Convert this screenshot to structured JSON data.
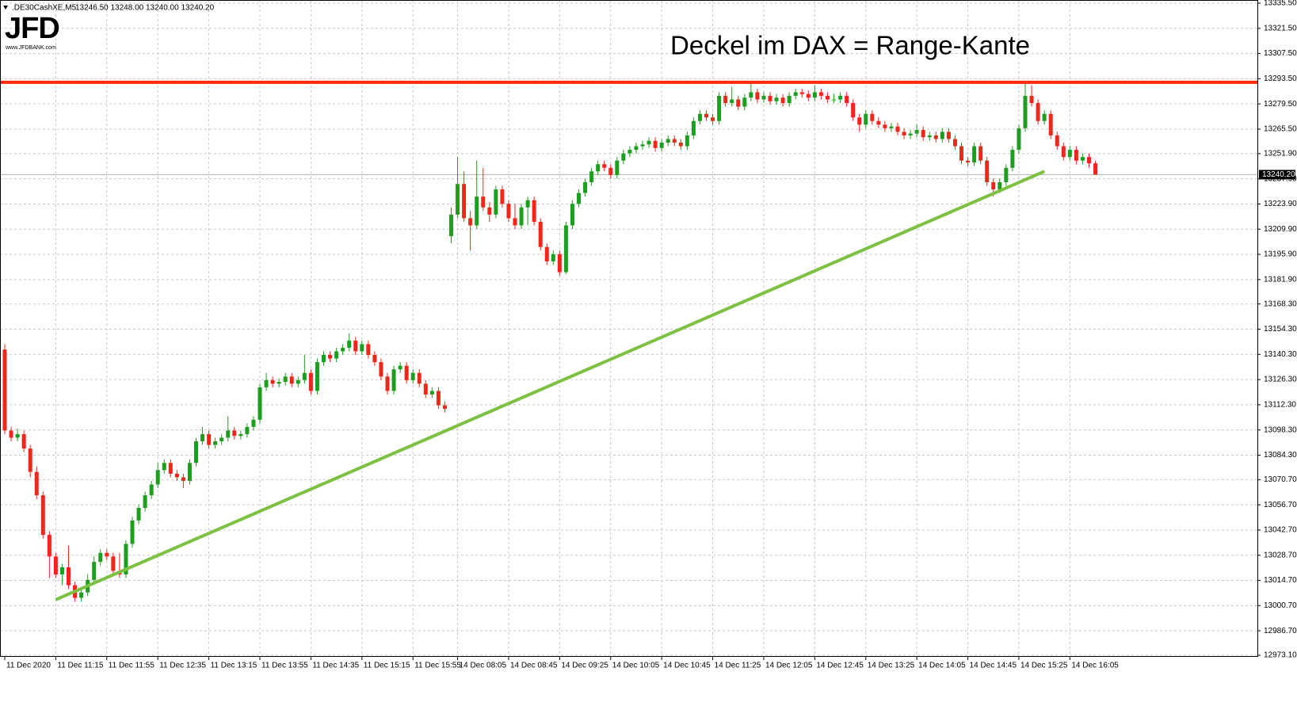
{
  "header": {
    "symbol": ".DE30CashXE,M5",
    "ohlc_text": "13246.50 13248.00 13240.00 13240.20"
  },
  "logo": {
    "brand": "JFD",
    "url": "www.JFDBANK.com"
  },
  "chart_data": {
    "type": "candlestick",
    "title": "Deckel im DAX = Range-Kante",
    "up_color": "#1e9e1e",
    "down_color": "#f0261b",
    "grid": true,
    "ylim": [
      12973.1,
      13335.5
    ],
    "yticks": [
      {
        "value": 13335.5,
        "label": "13335.50"
      },
      {
        "value": 13321.5,
        "label": "13321.50"
      },
      {
        "value": 13307.5,
        "label": "13307.50"
      },
      {
        "value": 13293.5,
        "label": "13293.50"
      },
      {
        "value": 13279.5,
        "label": "13279.50"
      },
      {
        "value": 13265.5,
        "label": "13265.50"
      },
      {
        "value": 13251.9,
        "label": "13251.90"
      },
      {
        "value": 13237.9,
        "label": "13237.90"
      },
      {
        "value": 13223.9,
        "label": "13223.90"
      },
      {
        "value": 13209.9,
        "label": "13209.90"
      },
      {
        "value": 13195.9,
        "label": "13195.90"
      },
      {
        "value": 13181.9,
        "label": "13181.90"
      },
      {
        "value": 13168.3,
        "label": "13168.30"
      },
      {
        "value": 13154.3,
        "label": "13154.30"
      },
      {
        "value": 13140.3,
        "label": "13140.30"
      },
      {
        "value": 13126.3,
        "label": "13126.30"
      },
      {
        "value": 13112.3,
        "label": "13112.30"
      },
      {
        "value": 13098.3,
        "label": "13098.30"
      },
      {
        "value": 13084.3,
        "label": "13084.30"
      },
      {
        "value": 13070.7,
        "label": "13070.70"
      },
      {
        "value": 13056.7,
        "label": "13056.70"
      },
      {
        "value": 13042.7,
        "label": "13042.70"
      },
      {
        "value": 13028.7,
        "label": "13028.70"
      },
      {
        "value": 13014.7,
        "label": "13014.70"
      },
      {
        "value": 13000.7,
        "label": "13000.70"
      },
      {
        "value": 12986.7,
        "label": "12986.70"
      },
      {
        "value": 12973.1,
        "label": "12973.10"
      }
    ],
    "last_price": {
      "value": 13240.2,
      "label": "13240.20"
    },
    "hlines": [
      {
        "value": 13291.5,
        "color": "#ff2a0a"
      }
    ],
    "trendlines": [
      {
        "x": [
          8,
          163
        ],
        "values": [
          13004,
          13242
        ],
        "color": "#7cc142"
      }
    ],
    "categories": [
      "11 Dec 2020",
      null,
      null,
      null,
      null,
      null,
      null,
      null,
      "11 Dec 11:15",
      null,
      null,
      null,
      null,
      null,
      null,
      null,
      "11 Dec 11:55",
      null,
      null,
      null,
      null,
      null,
      null,
      null,
      "11 Dec 12:35",
      null,
      null,
      null,
      null,
      null,
      null,
      null,
      "11 Dec 13:15",
      null,
      null,
      null,
      null,
      null,
      null,
      null,
      "11 Dec 13:55",
      null,
      null,
      null,
      null,
      null,
      null,
      null,
      "11 Dec 14:35",
      null,
      null,
      null,
      null,
      null,
      null,
      null,
      "11 Dec 15:15",
      null,
      null,
      null,
      null,
      null,
      null,
      null,
      "11 Dec 15:55",
      null,
      null,
      null,
      null,
      null,
      null,
      "14 Dec 08:05",
      null,
      null,
      null,
      null,
      null,
      null,
      null,
      "14 Dec 08:45",
      null,
      null,
      null,
      null,
      null,
      null,
      null,
      "14 Dec 09:25",
      null,
      null,
      null,
      null,
      null,
      null,
      null,
      "14 Dec 10:05",
      null,
      null,
      null,
      null,
      null,
      null,
      null,
      "14 Dec 10:45",
      null,
      null,
      null,
      null,
      null,
      null,
      null,
      "14 Dec 11:25",
      null,
      null,
      null,
      null,
      null,
      null,
      null,
      "14 Dec 12:05",
      null,
      null,
      null,
      null,
      null,
      null,
      null,
      "14 Dec 12:45",
      null,
      null,
      null,
      null,
      null,
      null,
      null,
      "14 Dec 13:25",
      null,
      null,
      null,
      null,
      null,
      null,
      null,
      "14 Dec 14:05",
      null,
      null,
      null,
      null,
      null,
      null,
      null,
      "14 Dec 14:45",
      null,
      null,
      null,
      null,
      null,
      null,
      null,
      "14 Dec 15:25",
      null,
      null,
      null,
      null,
      null,
      null,
      null,
      "14 Dec 16:05",
      null,
      null,
      null,
      null
    ],
    "ohlc": [
      [
        13143,
        13146,
        13096,
        13098
      ],
      [
        13098,
        13100,
        13092,
        13094
      ],
      [
        13094,
        13099,
        13092,
        13096
      ],
      [
        13096,
        13098,
        13086,
        13088
      ],
      [
        13088,
        13090,
        13072,
        13075
      ],
      [
        13075,
        13078,
        13060,
        13062
      ],
      [
        13062,
        13064,
        13038,
        13040
      ],
      [
        13040,
        13042,
        13016,
        13028
      ],
      [
        13028,
        13030,
        13016,
        13018
      ],
      [
        13018,
        13024,
        13012,
        13022
      ],
      [
        13022,
        13034,
        13010,
        13012
      ],
      [
        13012,
        13014,
        13003,
        13005
      ],
      [
        13005,
        13010,
        13003,
        13008
      ],
      [
        13008,
        13018,
        13006,
        13015
      ],
      [
        13015,
        13028,
        13013,
        13025
      ],
      [
        13025,
        13032,
        13023,
        13030
      ],
      [
        13030,
        13032,
        13026,
        13028
      ],
      [
        13028,
        13030,
        13018,
        13020
      ],
      [
        13020,
        13030,
        13016,
        13018
      ],
      [
        13018,
        13037,
        13016,
        13035
      ],
      [
        13035,
        13050,
        13033,
        13048
      ],
      [
        13048,
        13057,
        13046,
        13055
      ],
      [
        13055,
        13064,
        13053,
        13062
      ],
      [
        13062,
        13070,
        13060,
        13068
      ],
      [
        13068,
        13080,
        13066,
        13076
      ],
      [
        13076,
        13082,
        13074,
        13080
      ],
      [
        13080,
        13082,
        13072,
        13074
      ],
      [
        13074,
        13076,
        13070,
        13072
      ],
      [
        13072,
        13074,
        13066,
        13070
      ],
      [
        13070,
        13082,
        13068,
        13080
      ],
      [
        13080,
        13094,
        13078,
        13092
      ],
      [
        13092,
        13100,
        13090,
        13096
      ],
      [
        13096,
        13098,
        13088,
        13090
      ],
      [
        13090,
        13094,
        13088,
        13092
      ],
      [
        13092,
        13096,
        13090,
        13094
      ],
      [
        13094,
        13106,
        13092,
        13098
      ],
      [
        13098,
        13100,
        13093,
        13095
      ],
      [
        13095,
        13098,
        13093,
        13096
      ],
      [
        13096,
        13102,
        13094,
        13100
      ],
      [
        13100,
        13106,
        13098,
        13104
      ],
      [
        13104,
        13124,
        13102,
        13122
      ],
      [
        13122,
        13130,
        13120,
        13126
      ],
      [
        13126,
        13128,
        13122,
        13124
      ],
      [
        13124,
        13127,
        13122,
        13125
      ],
      [
        13125,
        13130,
        13123,
        13128
      ],
      [
        13128,
        13130,
        13122,
        13124
      ],
      [
        13124,
        13128,
        13122,
        13126
      ],
      [
        13126,
        13140,
        13124,
        13130
      ],
      [
        13130,
        13132,
        13118,
        13120
      ],
      [
        13120,
        13138,
        13118,
        13136
      ],
      [
        13136,
        13142,
        13134,
        13140
      ],
      [
        13140,
        13142,
        13136,
        13138
      ],
      [
        13138,
        13144,
        13136,
        13142
      ],
      [
        13142,
        13146,
        13140,
        13144
      ],
      [
        13144,
        13152,
        13142,
        13148
      ],
      [
        13148,
        13150,
        13140,
        13142
      ],
      [
        13142,
        13148,
        13140,
        13146
      ],
      [
        13146,
        13148,
        13138,
        13140
      ],
      [
        13140,
        13142,
        13134,
        13136
      ],
      [
        13136,
        13138,
        13126,
        13128
      ],
      [
        13128,
        13130,
        13118,
        13120
      ],
      [
        13120,
        13134,
        13118,
        13132
      ],
      [
        13132,
        13136,
        13130,
        13134
      ],
      [
        13134,
        13136,
        13124,
        13126
      ],
      [
        13126,
        13132,
        13124,
        13130
      ],
      [
        13130,
        13132,
        13122,
        13124
      ],
      [
        13124,
        13126,
        13116,
        13118
      ],
      [
        13118,
        13122,
        13116,
        13120
      ],
      [
        13120,
        13122,
        13110,
        13112
      ],
      [
        13112,
        13114,
        13108,
        13110
      ],
      [
        13206,
        13222,
        13202,
        13218
      ],
      [
        13218,
        13250,
        13216,
        13235
      ],
      [
        13235,
        13242,
        13214,
        13216
      ],
      [
        13216,
        13220,
        13198,
        13212
      ],
      [
        13212,
        13248,
        13210,
        13228
      ],
      [
        13228,
        13244,
        13220,
        13222
      ],
      [
        13222,
        13225,
        13214,
        13218
      ],
      [
        13218,
        13234,
        13216,
        13232
      ],
      [
        13232,
        13234,
        13222,
        13224
      ],
      [
        13224,
        13226,
        13214,
        13216
      ],
      [
        13216,
        13224,
        13210,
        13212
      ],
      [
        13212,
        13224,
        13210,
        13222
      ],
      [
        13222,
        13228,
        13212,
        13226
      ],
      [
        13226,
        13228,
        13212,
        13214
      ],
      [
        13214,
        13216,
        13198,
        13200
      ],
      [
        13200,
        13202,
        13190,
        13192
      ],
      [
        13192,
        13198,
        13190,
        13196
      ],
      [
        13196,
        13198,
        13184,
        13186
      ],
      [
        13186,
        13214,
        13185,
        13212
      ],
      [
        13212,
        13226,
        13210,
        13224
      ],
      [
        13224,
        13232,
        13222,
        13230
      ],
      [
        13230,
        13238,
        13228,
        13236
      ],
      [
        13236,
        13244,
        13234,
        13242
      ],
      [
        13242,
        13248,
        13240,
        13246
      ],
      [
        13246,
        13248,
        13242,
        13244
      ],
      [
        13244,
        13246,
        13238,
        13240
      ],
      [
        13240,
        13250,
        13238,
        13248
      ],
      [
        13248,
        13254,
        13246,
        13252
      ],
      [
        13252,
        13256,
        13250,
        13254
      ],
      [
        13254,
        13258,
        13252,
        13256
      ],
      [
        13256,
        13259,
        13254,
        13257
      ],
      [
        13257,
        13261,
        13255,
        13259
      ],
      [
        13259,
        13261,
        13253,
        13255
      ],
      [
        13255,
        13260,
        13253,
        13258
      ],
      [
        13258,
        13262,
        13256,
        13260
      ],
      [
        13260,
        13262,
        13256,
        13258
      ],
      [
        13258,
        13260,
        13254,
        13256
      ],
      [
        13256,
        13264,
        13254,
        13262
      ],
      [
        13262,
        13272,
        13260,
        13270
      ],
      [
        13270,
        13276,
        13268,
        13274
      ],
      [
        13274,
        13276,
        13270,
        13272
      ],
      [
        13272,
        13274,
        13268,
        13270
      ],
      [
        13270,
        13286,
        13268,
        13284
      ],
      [
        13284,
        13286,
        13278,
        13280
      ],
      [
        13280,
        13289,
        13278,
        13282
      ],
      [
        13282,
        13284,
        13276,
        13278
      ],
      [
        13278,
        13285,
        13276,
        13283
      ],
      [
        13283,
        13292,
        13281,
        13286
      ],
      [
        13286,
        13288,
        13280,
        13282
      ],
      [
        13282,
        13286,
        13280,
        13284
      ],
      [
        13284,
        13286,
        13279,
        13281
      ],
      [
        13281,
        13285,
        13279,
        13283
      ],
      [
        13283,
        13285,
        13278,
        13280
      ],
      [
        13280,
        13286,
        13278,
        13284
      ],
      [
        13284,
        13288,
        13282,
        13286
      ],
      [
        13286,
        13288,
        13283,
        13285
      ],
      [
        13285,
        13287,
        13281,
        13283
      ],
      [
        13283,
        13290,
        13281,
        13286
      ],
      [
        13286,
        13288,
        13282,
        13284
      ],
      [
        13284,
        13286,
        13280,
        13282
      ],
      [
        13282,
        13285,
        13280,
        13282
      ],
      [
        13282,
        13286,
        13280,
        13284
      ],
      [
        13284,
        13286,
        13278,
        13280
      ],
      [
        13280,
        13282,
        13270,
        13272
      ],
      [
        13272,
        13274,
        13264,
        13268
      ],
      [
        13268,
        13276,
        13266,
        13274
      ],
      [
        13274,
        13276,
        13268,
        13270
      ],
      [
        13270,
        13272,
        13266,
        13268
      ],
      [
        13268,
        13270,
        13264,
        13266
      ],
      [
        13266,
        13269,
        13264,
        13267
      ],
      [
        13267,
        13269,
        13262,
        13264
      ],
      [
        13264,
        13266,
        13260,
        13262
      ],
      [
        13262,
        13265,
        13260,
        13263
      ],
      [
        13263,
        13268,
        13261,
        13265
      ],
      [
        13265,
        13267,
        13259,
        13261
      ],
      [
        13261,
        13264,
        13259,
        13262
      ],
      [
        13262,
        13264,
        13258,
        13260
      ],
      [
        13260,
        13266,
        13258,
        13264
      ],
      [
        13264,
        13266,
        13258,
        13260
      ],
      [
        13260,
        13262,
        13254,
        13256
      ],
      [
        13256,
        13258,
        13246,
        13248
      ],
      [
        13248,
        13250,
        13245,
        13247
      ],
      [
        13247,
        13258,
        13245,
        13256
      ],
      [
        13256,
        13258,
        13246,
        13248
      ],
      [
        13248,
        13250,
        13234,
        13236
      ],
      [
        13236,
        13238,
        13228,
        13232
      ],
      [
        13232,
        13238,
        13230,
        13236
      ],
      [
        13236,
        13246,
        13234,
        13244
      ],
      [
        13244,
        13256,
        13242,
        13254
      ],
      [
        13254,
        13268,
        13252,
        13266
      ],
      [
        13266,
        13292,
        13264,
        13284
      ],
      [
        13284,
        13290,
        13278,
        13280
      ],
      [
        13280,
        13282,
        13268,
        13270
      ],
      [
        13270,
        13276,
        13268,
        13274
      ],
      [
        13274,
        13276,
        13260,
        13262
      ],
      [
        13262,
        13264,
        13254,
        13256
      ],
      [
        13256,
        13258,
        13248,
        13250
      ],
      [
        13250,
        13256,
        13248,
        13254
      ],
      [
        13254,
        13256,
        13246,
        13248
      ],
      [
        13248,
        13252,
        13246,
        13250
      ],
      [
        13250,
        13252,
        13244,
        13246.5
      ],
      [
        13246.5,
        13248,
        13240,
        13240.2
      ]
    ]
  }
}
